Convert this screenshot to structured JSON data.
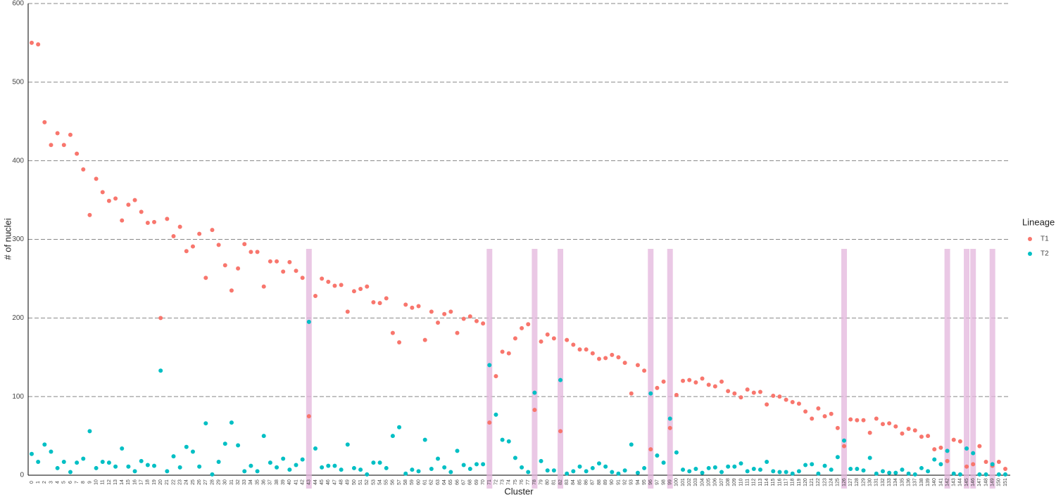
{
  "chart_data": {
    "type": "scatter",
    "x_label": "Cluster",
    "y_label": "# of nuclei",
    "legend_title": "Lineage",
    "legend": "right",
    "categories": [
      "0",
      "1",
      "2",
      "3",
      "4",
      "5",
      "6",
      "7",
      "8",
      "9",
      "10",
      "11",
      "12",
      "13",
      "14",
      "15",
      "16",
      "17",
      "18",
      "19",
      "20",
      "21",
      "22",
      "23",
      "24",
      "25",
      "26",
      "27",
      "28",
      "29",
      "30",
      "31",
      "32",
      "33",
      "34",
      "35",
      "36",
      "37",
      "38",
      "39",
      "40",
      "41",
      "42",
      "43",
      "44",
      "45",
      "46",
      "47",
      "48",
      "49",
      "50",
      "51",
      "52",
      "53",
      "54",
      "55",
      "56",
      "57",
      "58",
      "59",
      "60",
      "61",
      "62",
      "63",
      "64",
      "65",
      "66",
      "67",
      "68",
      "69",
      "70",
      "71",
      "72",
      "73",
      "74",
      "75",
      "76",
      "77",
      "78",
      "79",
      "80",
      "81",
      "82",
      "83",
      "84",
      "85",
      "86",
      "87",
      "88",
      "89",
      "90",
      "91",
      "92",
      "93",
      "94",
      "95",
      "96",
      "97",
      "98",
      "99",
      "100",
      "101",
      "102",
      "103",
      "104",
      "105",
      "106",
      "107",
      "108",
      "109",
      "110",
      "111",
      "112",
      "113",
      "114",
      "115",
      "116",
      "117",
      "118",
      "119",
      "120",
      "121",
      "122",
      "123",
      "124",
      "125",
      "126",
      "127",
      "128",
      "129",
      "130",
      "131",
      "132",
      "133",
      "134",
      "135",
      "136",
      "137",
      "138",
      "139",
      "140",
      "141",
      "142",
      "143",
      "144",
      "145",
      "146",
      "147",
      "148",
      "149",
      "150",
      "151"
    ],
    "highlight": [
      "43",
      "71",
      "78",
      "82",
      "96",
      "99",
      "126",
      "142",
      "145",
      "146",
      "149"
    ],
    "highlight_color": "#e3b5dc",
    "series": [
      {
        "name": "T1",
        "color": "#F8766D",
        "values": [
          550,
          548,
          449,
          420,
          435,
          420,
          433,
          409,
          389,
          331,
          377,
          360,
          349,
          352,
          324,
          344,
          350,
          335,
          321,
          322,
          200,
          326,
          304,
          316,
          285,
          291,
          307,
          251,
          312,
          293,
          267,
          235,
          263,
          294,
          284,
          284,
          240,
          272,
          272,
          259,
          271,
          260,
          251,
          75,
          228,
          250,
          246,
          241,
          242,
          208,
          234,
          237,
          240,
          220,
          219,
          225,
          181,
          169,
          217,
          213,
          215,
          172,
          208,
          194,
          205,
          208,
          181,
          199,
          202,
          196,
          193,
          67,
          126,
          157,
          155,
          174,
          187,
          192,
          83,
          170,
          179,
          174,
          56,
          172,
          166,
          160,
          160,
          155,
          148,
          149,
          153,
          150,
          143,
          104,
          140,
          133,
          33,
          111,
          119,
          60,
          102,
          120,
          121,
          118,
          123,
          115,
          113,
          119,
          107,
          104,
          99,
          109,
          105,
          106,
          90,
          101,
          100,
          96,
          93,
          91,
          81,
          72,
          85,
          75,
          78,
          60,
          37,
          71,
          70,
          70,
          54,
          72,
          65,
          66,
          62,
          53,
          59,
          57,
          49,
          50,
          33,
          35,
          18,
          45,
          43,
          11,
          14,
          37,
          17,
          12,
          17,
          8
        ]
      },
      {
        "name": "T2",
        "color": "#00BFC4",
        "values": [
          27,
          17,
          39,
          30,
          9,
          17,
          4,
          16,
          21,
          56,
          9,
          17,
          16,
          11,
          34,
          11,
          5,
          18,
          13,
          12,
          133,
          5,
          24,
          10,
          36,
          30,
          11,
          66,
          1,
          17,
          40,
          67,
          38,
          5,
          12,
          5,
          50,
          16,
          10,
          21,
          7,
          13,
          20,
          195,
          34,
          10,
          12,
          12,
          7,
          39,
          9,
          7,
          1,
          16,
          16,
          9,
          50,
          61,
          2,
          7,
          5,
          45,
          8,
          21,
          10,
          4,
          31,
          13,
          8,
          14,
          14,
          140,
          77,
          45,
          43,
          22,
          10,
          4,
          105,
          18,
          6,
          6,
          121,
          2,
          5,
          11,
          5,
          9,
          15,
          11,
          4,
          2,
          6,
          39,
          3,
          9,
          104,
          25,
          16,
          72,
          29,
          7,
          5,
          8,
          3,
          9,
          10,
          4,
          11,
          11,
          15,
          5,
          8,
          7,
          17,
          5,
          4,
          4,
          2,
          5,
          13,
          14,
          2,
          12,
          7,
          23,
          44,
          8,
          8,
          6,
          22,
          2,
          5,
          3,
          3,
          7,
          2,
          1,
          9,
          5,
          20,
          14,
          31,
          2,
          1,
          34,
          28,
          1,
          1,
          14,
          1,
          1
        ]
      }
    ],
    "ylim": [
      0,
      600
    ],
    "yticks": [
      0,
      100,
      200,
      300,
      400,
      500,
      600
    ],
    "grid": true
  }
}
